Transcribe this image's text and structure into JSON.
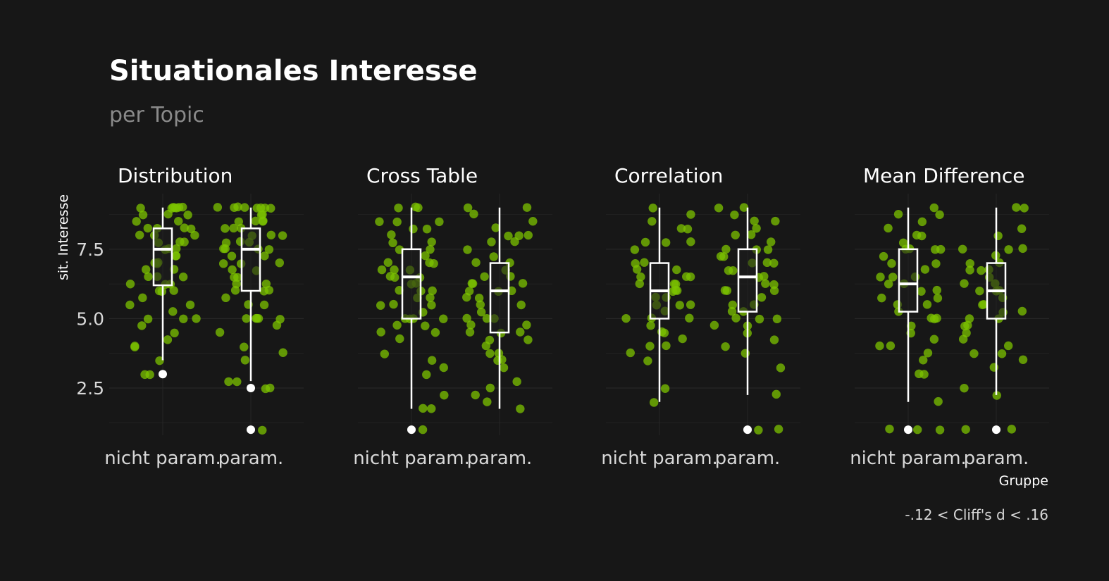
{
  "chart_data": {
    "type": "box-jitter",
    "title": "Situationales Interesse",
    "subtitle": "per Topic",
    "ylabel": "sit. Interesse",
    "xlabel": "Gruppe",
    "caption": "-.12 < Cliff's d < .16",
    "ylim": [
      0.8,
      9.5
    ],
    "yticks": [
      2.5,
      5.0,
      7.5
    ],
    "ytick_labels": [
      "2.5",
      "5.0",
      "7.5"
    ],
    "categories": [
      "nicht param.",
      "param."
    ],
    "grid": true,
    "colors": {
      "background": "#171717",
      "points": "#7cc300",
      "box": "#ffffff",
      "text": "#ffffff",
      "muted": "#8a8a8a"
    },
    "panels": [
      {
        "title": "Distribution",
        "groups": [
          {
            "name": "nicht param.",
            "q1": 6.2,
            "median": 7.5,
            "q3": 8.25,
            "whisker_low": 3.5,
            "whisker_high": 9.0,
            "outliers": [
              3.0
            ],
            "points": [
              9.0,
              9.0,
              9.0,
              9.0,
              9.0,
              9.0,
              9.0,
              8.75,
              8.75,
              8.75,
              8.5,
              8.5,
              8.25,
              8.25,
              8.25,
              8.25,
              8.0,
              8.0,
              8.0,
              7.75,
              7.75,
              7.75,
              7.5,
              7.5,
              7.5,
              7.25,
              7.25,
              7.0,
              7.0,
              7.0,
              6.75,
              6.75,
              6.5,
              6.5,
              6.5,
              6.25,
              6.25,
              6.25,
              6.0,
              6.0,
              6.0,
              5.75,
              5.5,
              5.5,
              5.25,
              5.0,
              5.0,
              5.0,
              4.75,
              4.5,
              4.25,
              4.0,
              4.0,
              3.5,
              3.0,
              3.0
            ]
          },
          {
            "name": "param.",
            "q1": 6.0,
            "median": 7.5,
            "q3": 8.25,
            "whisker_low": 2.75,
            "whisker_high": 9.0,
            "outliers": [
              2.5,
              1.0
            ],
            "points": [
              9.0,
              9.0,
              9.0,
              9.0,
              9.0,
              9.0,
              9.0,
              9.0,
              8.75,
              8.75,
              8.5,
              8.5,
              8.5,
              8.5,
              8.25,
              8.25,
              8.25,
              8.0,
              8.0,
              8.0,
              7.75,
              7.75,
              7.75,
              7.5,
              7.5,
              7.5,
              7.5,
              7.25,
              7.25,
              7.0,
              7.0,
              7.0,
              6.75,
              6.75,
              6.5,
              6.5,
              6.25,
              6.25,
              6.0,
              6.0,
              6.0,
              5.75,
              5.5,
              5.5,
              5.0,
              5.0,
              5.0,
              5.0,
              5.0,
              4.75,
              4.5,
              4.0,
              3.75,
              3.5,
              2.75,
              2.75,
              2.5,
              2.5,
              1.0
            ]
          }
        ]
      },
      {
        "title": "Cross Table",
        "groups": [
          {
            "name": "nicht param.",
            "q1": 5.0,
            "median": 6.5,
            "q3": 7.5,
            "whisker_low": 1.75,
            "whisker_high": 9.0,
            "outliers": [
              1.0
            ],
            "points": [
              9.0,
              9.0,
              9.0,
              8.5,
              8.5,
              8.5,
              8.25,
              8.25,
              8.0,
              7.75,
              7.75,
              7.5,
              7.5,
              7.25,
              7.0,
              7.0,
              7.0,
              6.75,
              6.75,
              6.75,
              6.5,
              6.5,
              6.5,
              6.25,
              6.25,
              6.0,
              6.0,
              6.0,
              5.75,
              5.75,
              5.5,
              5.5,
              5.5,
              5.25,
              5.0,
              5.0,
              5.0,
              5.0,
              4.75,
              4.75,
              4.5,
              4.5,
              4.25,
              3.75,
              3.5,
              3.25,
              3.0,
              2.25,
              1.75,
              1.75,
              1.0
            ]
          },
          {
            "name": "param.",
            "q1": 4.5,
            "median": 6.0,
            "q3": 7.0,
            "whisker_low": 1.75,
            "whisker_high": 9.0,
            "outliers": [],
            "points": [
              9.0,
              9.0,
              8.75,
              8.5,
              8.25,
              8.0,
              8.0,
              8.0,
              7.75,
              7.75,
              7.5,
              7.25,
              7.0,
              7.0,
              6.75,
              6.5,
              6.5,
              6.25,
              6.25,
              6.25,
              6.0,
              6.0,
              6.0,
              5.75,
              5.75,
              5.5,
              5.5,
              5.25,
              5.0,
              5.0,
              5.0,
              4.75,
              4.75,
              4.5,
              4.5,
              4.5,
              4.25,
              4.25,
              4.0,
              3.75,
              3.75,
              3.5,
              3.5,
              3.25,
              2.75,
              2.5,
              2.25,
              2.0,
              1.75
            ]
          }
        ]
      },
      {
        "title": "Correlation",
        "groups": [
          {
            "name": "nicht param.",
            "q1": 5.0,
            "median": 6.0,
            "q3": 7.0,
            "whisker_low": 2.0,
            "whisker_high": 9.0,
            "outliers": [],
            "points": [
              9.0,
              8.75,
              8.5,
              8.25,
              8.25,
              7.75,
              7.75,
              7.75,
              7.5,
              7.0,
              7.0,
              6.75,
              6.75,
              6.5,
              6.5,
              6.5,
              6.25,
              6.25,
              6.25,
              6.0,
              6.0,
              6.0,
              5.75,
              5.75,
              5.5,
              5.5,
              5.5,
              5.25,
              5.0,
              5.0,
              5.0,
              4.75,
              4.5,
              4.5,
              4.25,
              4.0,
              4.0,
              3.75,
              3.5,
              2.5,
              2.0
            ]
          },
          {
            "name": "param.",
            "q1": 5.25,
            "median": 6.5,
            "q3": 7.5,
            "whisker_low": 2.25,
            "whisker_high": 9.0,
            "outliers": [
              1.0
            ],
            "points": [
              9.0,
              9.0,
              8.75,
              8.5,
              8.5,
              8.25,
              8.0,
              8.0,
              7.75,
              7.5,
              7.5,
              7.5,
              7.25,
              7.25,
              7.0,
              7.0,
              7.0,
              6.75,
              6.75,
              6.5,
              6.5,
              6.25,
              6.25,
              6.0,
              6.0,
              6.0,
              5.75,
              5.5,
              5.5,
              5.25,
              5.25,
              5.0,
              5.0,
              5.0,
              4.75,
              4.75,
              4.5,
              4.25,
              4.0,
              3.75,
              3.25,
              2.25,
              1.0,
              1.0
            ]
          }
        ]
      },
      {
        "title": "Mean Difference",
        "groups": [
          {
            "name": "nicht param.",
            "q1": 5.25,
            "median": 6.25,
            "q3": 7.5,
            "whisker_low": 2.0,
            "whisker_high": 9.0,
            "outliers": [
              1.0
            ],
            "points": [
              9.0,
              8.75,
              8.75,
              8.5,
              8.25,
              8.0,
              8.0,
              7.75,
              7.5,
              7.5,
              7.5,
              7.5,
              7.25,
              7.0,
              7.0,
              6.75,
              6.5,
              6.5,
              6.5,
              6.25,
              6.25,
              6.0,
              6.0,
              5.75,
              5.75,
              5.5,
              5.5,
              5.25,
              5.0,
              5.0,
              5.0,
              4.75,
              4.5,
              4.25,
              4.0,
              4.0,
              3.75,
              3.5,
              3.0,
              3.0,
              2.0,
              1.0,
              1.0,
              1.0
            ]
          },
          {
            "name": "param.",
            "q1": 5.0,
            "median": 6.0,
            "q3": 7.0,
            "whisker_low": 2.25,
            "whisker_high": 9.0,
            "outliers": [
              1.0
            ],
            "points": [
              9.0,
              9.0,
              8.25,
              8.0,
              7.5,
              7.5,
              7.5,
              7.25,
              7.0,
              7.0,
              6.75,
              6.75,
              6.75,
              6.5,
              6.25,
              6.25,
              6.0,
              6.0,
              6.0,
              5.75,
              5.5,
              5.5,
              5.25,
              5.25,
              5.0,
              5.0,
              4.75,
              4.75,
              4.5,
              4.25,
              4.0,
              3.75,
              3.75,
              3.5,
              3.25,
              2.5,
              2.25,
              1.0,
              1.0
            ]
          }
        ]
      }
    ]
  }
}
